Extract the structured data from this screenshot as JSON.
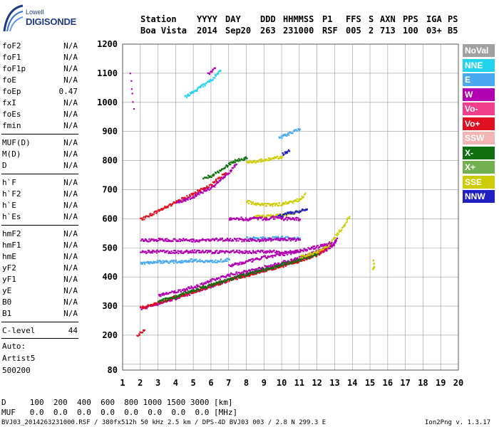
{
  "logo": {
    "line1": "Lowell",
    "line2": "DIGISONDE"
  },
  "header": {
    "row1": [
      "Station",
      "YYYY",
      "DAY",
      "DDD",
      "HHMMSS",
      "P1",
      "FFS",
      "S",
      "AXN",
      "PPS",
      "IGA",
      "PS"
    ],
    "row2": [
      "Boa Vista",
      "2014",
      "Sep20",
      "263",
      "231000",
      "RSF",
      "005",
      "2",
      "713",
      "100",
      "03+",
      "B5"
    ]
  },
  "params": [
    {
      "name": "foF2",
      "value": "N/A"
    },
    {
      "name": "foF1",
      "value": "N/A"
    },
    {
      "name": "foF1p",
      "value": "N/A"
    },
    {
      "name": "foE",
      "value": "N/A"
    },
    {
      "name": "foEp",
      "value": "0.47"
    },
    {
      "name": "fxI",
      "value": "N/A"
    },
    {
      "name": "foEs",
      "value": "N/A"
    },
    {
      "name": "fmin",
      "value": "N/A"
    },
    {
      "name": "MUF(D)",
      "value": "N/A"
    },
    {
      "name": "M(D)",
      "value": "N/A"
    },
    {
      "name": "D",
      "value": "N/A"
    },
    {
      "name": "h`F",
      "value": "N/A"
    },
    {
      "name": "h`F2",
      "value": "N/A"
    },
    {
      "name": "h`E",
      "value": "N/A"
    },
    {
      "name": "h`Es",
      "value": "N/A"
    },
    {
      "name": "hmF2",
      "value": "N/A"
    },
    {
      "name": "hmF1",
      "value": "N/A"
    },
    {
      "name": "hmE",
      "value": "N/A"
    },
    {
      "name": "yF2",
      "value": "N/A"
    },
    {
      "name": "yF1",
      "value": "N/A"
    },
    {
      "name": "yE",
      "value": "N/A"
    },
    {
      "name": "B0",
      "value": "N/A"
    },
    {
      "name": "B1",
      "value": "N/A"
    }
  ],
  "clevel": {
    "name": "C-level",
    "value": "44"
  },
  "auto": {
    "line1": "Auto:",
    "line2": "Artist5",
    "line3": "500200"
  },
  "footer": {
    "d_row": "D     100  200  400  600  800 1000 1500 3000 [km]",
    "muf_row": "MUF   0.0  0.0  0.0  0.0  0.0  0.0  0.0  0.0 [MHz]",
    "file_info": "BVJ03_2014263231000.RSF / 380fx512h 50 kHz 2.5 km / DPS-4D BVJ03 003 / 2.8 N 299.3 E",
    "version": "Ion2Png v. 1.3.17"
  },
  "legend": [
    {
      "label": "NoVal",
      "color": "#a0a0a0"
    },
    {
      "label": "NNE",
      "color": "#22d3ee"
    },
    {
      "label": "E",
      "color": "#4aa8f0"
    },
    {
      "label": "W",
      "color": "#b000b0"
    },
    {
      "label": "Vo-",
      "color": "#f0408c"
    },
    {
      "label": "Vo+",
      "color": "#e01020"
    },
    {
      "label": "SSW",
      "color": "#f3b4b4"
    },
    {
      "label": "X-",
      "color": "#107010"
    },
    {
      "label": "X+",
      "color": "#72b050"
    },
    {
      "label": "SSE",
      "color": "#cccc00"
    },
    {
      "label": "NNW",
      "color": "#2020c0"
    }
  ],
  "chart_data": {
    "type": "scatter",
    "title": "",
    "xlabel": "",
    "ylabel": "",
    "xlim": [
      1,
      20
    ],
    "ylim": [
      80,
      1200
    ],
    "x_ticks": [
      1,
      2,
      3,
      4,
      5,
      6,
      7,
      8,
      9,
      10,
      11,
      12,
      13,
      14,
      15,
      16,
      17,
      18,
      19,
      20
    ],
    "y_ticks": [
      80,
      100,
      200,
      300,
      400,
      500,
      600,
      700,
      800,
      900,
      1000,
      1100,
      1200
    ],
    "y_tick_labels": [
      80,
      200,
      300,
      400,
      500,
      600,
      700,
      800,
      900,
      1000,
      1100,
      1200
    ],
    "grid": true,
    "legend_position": "right",
    "series": [
      {
        "name": "W",
        "color": "#b000b0",
        "x": [
          2.0,
          3.0,
          4.0,
          5.0,
          6.0,
          7.0,
          8.0,
          9.0,
          10.0,
          11.0,
          12.0,
          12.6,
          13.0
        ],
        "y": [
          293,
          312,
          330,
          350,
          372,
          392,
          412,
          428,
          445,
          462,
          482,
          500,
          520
        ]
      },
      {
        "name": "W",
        "color": "#b000b0",
        "x": [
          3.0,
          4.0,
          5.0,
          6.0,
          7.0,
          8.0,
          9.0,
          10.0,
          11.0,
          12.0,
          12.8,
          13.1
        ],
        "y": [
          340,
          352,
          368,
          390,
          410,
          422,
          436,
          452,
          468,
          490,
          510,
          535
        ]
      },
      {
        "name": "Vo+",
        "color": "#e01020",
        "x": [
          2.0,
          3.0,
          4.0,
          5.0,
          6.0,
          7.0,
          8.0,
          9.0,
          10.0,
          11.0,
          12.0,
          12.5
        ],
        "y": [
          296,
          314,
          334,
          352,
          372,
          392,
          408,
          424,
          440,
          458,
          478,
          500
        ]
      },
      {
        "name": "X-",
        "color": "#107010",
        "x": [
          3.0,
          4.0,
          5.0,
          6.0,
          7.0,
          8.0,
          9.0,
          10.0,
          11.0,
          12.0
        ],
        "y": [
          318,
          336,
          356,
          376,
          394,
          412,
          428,
          446,
          462,
          482
        ]
      },
      {
        "name": "SSE",
        "color": "#cccc00",
        "x": [
          11.0,
          12.0,
          12.6,
          13.0,
          13.4,
          13.8
        ],
        "y": [
          470,
          490,
          510,
          540,
          570,
          610
        ]
      },
      {
        "name": "W",
        "color": "#b000b0",
        "x": [
          7.0,
          8.0,
          9.0,
          10.0,
          11.0,
          12.0,
          12.8
        ],
        "y": [
          440,
          455,
          470,
          480,
          492,
          506,
          520
        ]
      },
      {
        "name": "E",
        "color": "#4aa8f0",
        "x": [
          2.0,
          3.0,
          4.0,
          5.0,
          6.0,
          7.0
        ],
        "y": [
          450,
          455,
          455,
          460,
          455,
          462
        ]
      },
      {
        "name": "E",
        "color": "#4aa8f0",
        "x": [
          8.0,
          9.0,
          10.0,
          11.0
        ],
        "y": [
          535,
          535,
          537,
          535
        ]
      },
      {
        "name": "W",
        "color": "#b000b0",
        "x": [
          2.0,
          3.0,
          4.0,
          5.0,
          6.0,
          7.0,
          8.0,
          9.0,
          10.0,
          11.0
        ],
        "y": [
          528,
          530,
          530,
          528,
          530,
          532,
          528,
          530,
          532,
          530
        ]
      },
      {
        "name": "W",
        "color": "#b000b0",
        "x": [
          2.0,
          3.0,
          4.0,
          5.0,
          6.0,
          7.0,
          8.0,
          9.0,
          10.0,
          11.0
        ],
        "y": [
          488,
          490,
          488,
          490,
          488,
          490,
          488,
          490,
          488,
          490
        ]
      },
      {
        "name": "SSE",
        "color": "#cccc00",
        "x": [
          8.0,
          8.5,
          9.0,
          9.5,
          10.0,
          10.5,
          11.0,
          11.3
        ],
        "y": [
          662,
          652,
          650,
          650,
          654,
          660,
          668,
          690
        ]
      },
      {
        "name": "SSE",
        "color": "#cccc00",
        "x": [
          8.5,
          9.0,
          9.5,
          10.0,
          10.5,
          11.0
        ],
        "y": [
          615,
          610,
          612,
          614,
          620,
          628
        ]
      },
      {
        "name": "NNW",
        "color": "#2020c0",
        "x": [
          9.8,
          10.2,
          10.6,
          11.0,
          11.4
        ],
        "y": [
          612,
          618,
          624,
          628,
          635
        ]
      },
      {
        "name": "W",
        "color": "#b000b0",
        "x": [
          7.0,
          7.5,
          8.0,
          8.5,
          9.0,
          9.5,
          10.0,
          10.5,
          11.0
        ],
        "y": [
          600,
          604,
          600,
          605,
          602,
          606,
          602,
          604,
          600
        ]
      },
      {
        "name": "Vo+",
        "color": "#e01020",
        "x": [
          2.0,
          3.0,
          4.0,
          5.0,
          6.0,
          6.8
        ],
        "y": [
          600,
          630,
          660,
          690,
          720,
          760
        ]
      },
      {
        "name": "W",
        "color": "#b000b0",
        "x": [
          4.0,
          5.0,
          6.0,
          6.8,
          7.4
        ],
        "y": [
          655,
          680,
          710,
          750,
          790
        ]
      },
      {
        "name": "SSE",
        "color": "#cccc00",
        "x": [
          8.0,
          8.5,
          9.0,
          9.5,
          10.0
        ],
        "y": [
          795,
          800,
          805,
          810,
          815
        ]
      },
      {
        "name": "X-",
        "color": "#107010",
        "x": [
          5.5,
          6.0,
          6.5,
          7.0,
          7.5,
          8.0
        ],
        "y": [
          740,
          750,
          770,
          790,
          805,
          810
        ]
      },
      {
        "name": "NNW",
        "color": "#2020c0",
        "x": [
          10.0,
          10.2,
          10.4
        ],
        "y": [
          825,
          830,
          835
        ]
      },
      {
        "name": "NNE",
        "color": "#22d3ee",
        "x": [
          4.5,
          5.0,
          5.5,
          6.0,
          6.5
        ],
        "y": [
          1020,
          1040,
          1060,
          1080,
          1110
        ]
      },
      {
        "name": "E",
        "color": "#4aa8f0",
        "x": [
          9.8,
          10.2,
          10.6,
          11.0
        ],
        "y": [
          880,
          890,
          900,
          910
        ]
      },
      {
        "name": "W",
        "color": "#b000b0",
        "x": [
          5.8,
          6.0,
          6.2
        ],
        "y": [
          1100,
          1110,
          1120
        ]
      },
      {
        "name": "SSE",
        "color": "#cccc00",
        "x": [
          15.1,
          15.2,
          15.15
        ],
        "y": [
          430,
          440,
          460
        ]
      },
      {
        "name": "Vo+",
        "color": "#e01020",
        "x": [
          1.8,
          2.0,
          2.2
        ],
        "y": [
          200,
          210,
          220
        ]
      },
      {
        "name": "W",
        "color": "#b000b0",
        "x": [
          1.4,
          1.6
        ],
        "y": [
          1100,
          980
        ]
      }
    ]
  }
}
